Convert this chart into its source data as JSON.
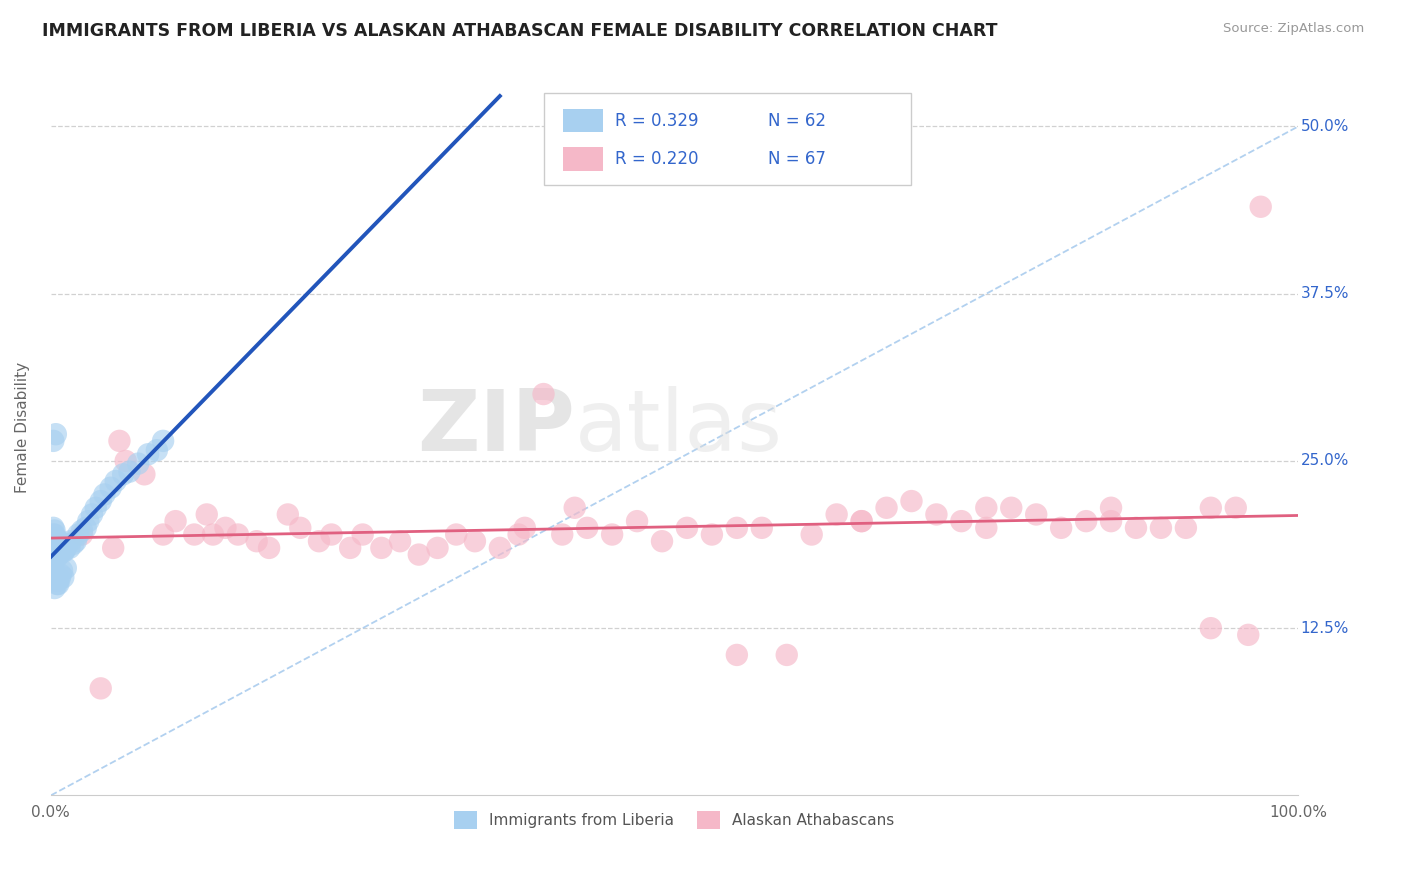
{
  "title": "IMMIGRANTS FROM LIBERIA VS ALASKAN ATHABASCAN FEMALE DISABILITY CORRELATION CHART",
  "source_text": "Source: ZipAtlas.com",
  "ylabel": "Female Disability",
  "legend_label_1": "Immigrants from Liberia",
  "legend_label_2": "Alaskan Athabascans",
  "r1": 0.329,
  "n1": 62,
  "r2": 0.22,
  "n2": 67,
  "color1": "#a8d0f0",
  "color2": "#f5b8c8",
  "line_color1": "#2255bb",
  "line_color2": "#e06080",
  "diag_color": "#aaccee",
  "xlim": [
    0.0,
    1.0
  ],
  "ylim": [
    0.0,
    0.55
  ],
  "y_ticks": [
    0.0,
    0.125,
    0.25,
    0.375,
    0.5
  ],
  "y_tick_labels": [
    "",
    "12.5%",
    "25.0%",
    "37.5%",
    "50.0%"
  ],
  "background_color": "#ffffff",
  "watermark_zip": "ZIP",
  "watermark_atlas": "atlas",
  "legend_r1_text": "R = 0.329",
  "legend_n1_text": "N = 62",
  "legend_r2_text": "R = 0.220",
  "legend_n2_text": "N = 67",
  "series1_x": [
    0.001,
    0.001,
    0.002,
    0.002,
    0.002,
    0.003,
    0.003,
    0.003,
    0.003,
    0.004,
    0.004,
    0.004,
    0.005,
    0.005,
    0.005,
    0.006,
    0.006,
    0.007,
    0.007,
    0.008,
    0.008,
    0.009,
    0.01,
    0.01,
    0.011,
    0.012,
    0.013,
    0.015,
    0.016,
    0.018,
    0.02,
    0.022,
    0.025,
    0.028,
    0.03,
    0.033,
    0.036,
    0.04,
    0.043,
    0.048,
    0.052,
    0.058,
    0.063,
    0.07,
    0.078,
    0.085,
    0.09,
    0.001,
    0.002,
    0.003,
    0.004,
    0.005,
    0.006,
    0.007,
    0.008,
    0.009,
    0.01,
    0.012,
    0.003,
    0.005,
    0.002,
    0.004
  ],
  "series1_y": [
    0.185,
    0.192,
    0.188,
    0.195,
    0.2,
    0.182,
    0.19,
    0.195,
    0.198,
    0.18,
    0.188,
    0.192,
    0.178,
    0.185,
    0.19,
    0.18,
    0.188,
    0.183,
    0.19,
    0.182,
    0.188,
    0.185,
    0.182,
    0.188,
    0.183,
    0.185,
    0.188,
    0.185,
    0.19,
    0.188,
    0.19,
    0.195,
    0.198,
    0.2,
    0.205,
    0.21,
    0.215,
    0.22,
    0.225,
    0.23,
    0.235,
    0.24,
    0.242,
    0.248,
    0.255,
    0.258,
    0.265,
    0.172,
    0.168,
    0.165,
    0.162,
    0.16,
    0.158,
    0.162,
    0.165,
    0.168,
    0.163,
    0.17,
    0.155,
    0.158,
    0.265,
    0.27
  ],
  "series2_x": [
    0.025,
    0.04,
    0.055,
    0.06,
    0.075,
    0.09,
    0.1,
    0.115,
    0.125,
    0.14,
    0.15,
    0.165,
    0.175,
    0.19,
    0.2,
    0.215,
    0.225,
    0.24,
    0.25,
    0.265,
    0.28,
    0.295,
    0.31,
    0.325,
    0.34,
    0.36,
    0.375,
    0.395,
    0.41,
    0.43,
    0.45,
    0.47,
    0.49,
    0.51,
    0.53,
    0.55,
    0.57,
    0.59,
    0.61,
    0.63,
    0.65,
    0.67,
    0.69,
    0.71,
    0.73,
    0.75,
    0.77,
    0.79,
    0.81,
    0.83,
    0.85,
    0.87,
    0.89,
    0.91,
    0.93,
    0.95,
    0.05,
    0.13,
    0.38,
    0.42,
    0.55,
    0.65,
    0.75,
    0.85,
    0.93,
    0.96,
    0.97
  ],
  "series2_y": [
    0.195,
    0.08,
    0.265,
    0.25,
    0.24,
    0.195,
    0.205,
    0.195,
    0.21,
    0.2,
    0.195,
    0.19,
    0.185,
    0.21,
    0.2,
    0.19,
    0.195,
    0.185,
    0.195,
    0.185,
    0.19,
    0.18,
    0.185,
    0.195,
    0.19,
    0.185,
    0.195,
    0.3,
    0.195,
    0.2,
    0.195,
    0.205,
    0.19,
    0.2,
    0.195,
    0.105,
    0.2,
    0.105,
    0.195,
    0.21,
    0.205,
    0.215,
    0.22,
    0.21,
    0.205,
    0.2,
    0.215,
    0.21,
    0.2,
    0.205,
    0.215,
    0.2,
    0.2,
    0.2,
    0.215,
    0.215,
    0.185,
    0.195,
    0.2,
    0.215,
    0.2,
    0.205,
    0.215,
    0.205,
    0.125,
    0.12,
    0.44
  ]
}
